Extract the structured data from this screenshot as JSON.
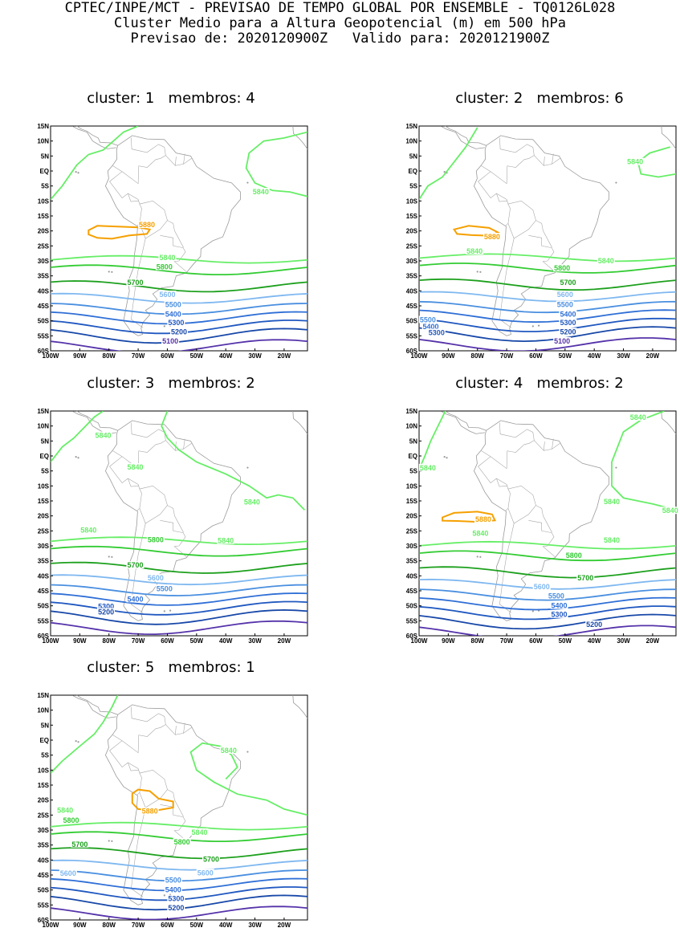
{
  "header": {
    "line1": "CPTEC/INPE/MCT - PREVISAO DE TEMPO GLOBAL POR ENSEMBLE - TQ0126L028",
    "line2": "Cluster Medio para a Altura Geopotencial (m) em 500 hPa",
    "line3": "Previsao de: 2020120900Z   Valido para: 2020121900Z"
  },
  "axes": {
    "lat_labels": [
      "15N",
      "10N",
      "5N",
      "EQ",
      "5S",
      "10S",
      "15S",
      "20S",
      "25S",
      "30S",
      "35S",
      "40S",
      "45S",
      "50S",
      "55S",
      "60S"
    ],
    "lon_labels": [
      "100W",
      "90W",
      "80W",
      "70W",
      "60W",
      "50W",
      "40W",
      "30W",
      "20W"
    ]
  },
  "contour_colors": {
    "5880": "#f5a000",
    "5840": "#66ee66",
    "5800": "#33cc33",
    "5700": "#1da01d",
    "5600": "#7fb8f0",
    "5500": "#4a8fe0",
    "5400": "#2f6fd6",
    "5300": "#2058c0",
    "5200": "#1848a8",
    "5100": "#5533aa"
  },
  "panels": [
    {
      "title": "cluster: 1   membros: 4",
      "labels": [
        {
          "text": "5880",
          "lon": -67,
          "lat": -18.5
        },
        {
          "text": "5840",
          "lon": -28,
          "lat": -7.5
        },
        {
          "text": "5840",
          "lon": -60,
          "lat": -29.5
        },
        {
          "text": "5800",
          "lon": -61,
          "lat": -32.5
        },
        {
          "text": "5700",
          "lon": -71,
          "lat": -37.8
        },
        {
          "text": "5600",
          "lon": -60,
          "lat": -41.8
        },
        {
          "text": "5500",
          "lon": -58,
          "lat": -45.2
        },
        {
          "text": "5400",
          "lon": -58,
          "lat": -48.3
        },
        {
          "text": "5300",
          "lon": -57,
          "lat": -51.2
        },
        {
          "text": "5200",
          "lon": -56,
          "lat": -54.2
        },
        {
          "text": "5100",
          "lon": -59,
          "lat": -57.3
        }
      ]
    },
    {
      "title": "cluster: 2   membros: 6",
      "labels": [
        {
          "text": "5840",
          "lon": -26,
          "lat": 2.5
        },
        {
          "text": "5880",
          "lon": -75,
          "lat": -22.5
        },
        {
          "text": "5840",
          "lon": -81,
          "lat": -27.3
        },
        {
          "text": "5840",
          "lon": -36,
          "lat": -30.5
        },
        {
          "text": "5800",
          "lon": -51,
          "lat": -33
        },
        {
          "text": "5700",
          "lon": -49,
          "lat": -37.8
        },
        {
          "text": "5600",
          "lon": -50,
          "lat": -41.8
        },
        {
          "text": "5500",
          "lon": -50,
          "lat": -45.2
        },
        {
          "text": "5400",
          "lon": -49,
          "lat": -48.3
        },
        {
          "text": "5300",
          "lon": -49,
          "lat": -51.2
        },
        {
          "text": "5200",
          "lon": -49,
          "lat": -54.2
        },
        {
          "text": "5100",
          "lon": -51,
          "lat": -57.3
        },
        {
          "text": "5500",
          "lon": -97,
          "lat": -50.2
        },
        {
          "text": "5400",
          "lon": -96,
          "lat": -52.5
        },
        {
          "text": "5300",
          "lon": -94,
          "lat": -54.5
        }
      ]
    },
    {
      "title": "cluster: 3   membros: 2",
      "labels": [
        {
          "text": "5840",
          "lon": -82,
          "lat": 6.3
        },
        {
          "text": "5840",
          "lon": -71,
          "lat": -4.3
        },
        {
          "text": "5840",
          "lon": -31,
          "lat": -16
        },
        {
          "text": "5840",
          "lon": -87,
          "lat": -25.3
        },
        {
          "text": "5800",
          "lon": -64,
          "lat": -28.5
        },
        {
          "text": "5840",
          "lon": -40,
          "lat": -28.8
        },
        {
          "text": "5700",
          "lon": -71,
          "lat": -37
        },
        {
          "text": "5600",
          "lon": -64,
          "lat": -41.3
        },
        {
          "text": "5500",
          "lon": -61,
          "lat": -44.8
        },
        {
          "text": "5400",
          "lon": -71,
          "lat": -48.3
        },
        {
          "text": "5300",
          "lon": -81,
          "lat": -50.8
        },
        {
          "text": "5200",
          "lon": -81,
          "lat": -52.7
        }
      ]
    },
    {
      "title": "cluster: 4   membros: 2",
      "labels": [
        {
          "text": "5840",
          "lon": -25,
          "lat": 12.3
        },
        {
          "text": "5840",
          "lon": -97,
          "lat": -4.5
        },
        {
          "text": "5840",
          "lon": -34,
          "lat": -15.8
        },
        {
          "text": "5840",
          "lon": -14,
          "lat": -18.8
        },
        {
          "text": "5880",
          "lon": -78,
          "lat": -21.7
        },
        {
          "text": "5840",
          "lon": -79,
          "lat": -26.4
        },
        {
          "text": "5840",
          "lon": -34,
          "lat": -28.7
        },
        {
          "text": "5800",
          "lon": -47,
          "lat": -33.8
        },
        {
          "text": "5700",
          "lon": -43,
          "lat": -41.3
        },
        {
          "text": "5600",
          "lon": -58,
          "lat": -44.2
        },
        {
          "text": "5500",
          "lon": -53,
          "lat": -47.3
        },
        {
          "text": "5400",
          "lon": -52,
          "lat": -50.5
        },
        {
          "text": "5300",
          "lon": -52,
          "lat": -53.5
        },
        {
          "text": "5200",
          "lon": -40,
          "lat": -56.8
        }
      ]
    },
    {
      "title": "cluster: 5   membros: 1",
      "labels": [
        {
          "text": "5840",
          "lon": -39,
          "lat": -4
        },
        {
          "text": "5880",
          "lon": -66,
          "lat": -24.3
        },
        {
          "text": "5840",
          "lon": -95,
          "lat": -24
        },
        {
          "text": "5800",
          "lon": -93,
          "lat": -27.3
        },
        {
          "text": "5840",
          "lon": -49,
          "lat": -31.3
        },
        {
          "text": "5800",
          "lon": -55,
          "lat": -34.5
        },
        {
          "text": "5700",
          "lon": -90,
          "lat": -35.3
        },
        {
          "text": "5700",
          "lon": -45,
          "lat": -40.3
        },
        {
          "text": "5600",
          "lon": -94,
          "lat": -45
        },
        {
          "text": "5600",
          "lon": -47,
          "lat": -44.8
        },
        {
          "text": "5500",
          "lon": -58,
          "lat": -47.3
        },
        {
          "text": "5400",
          "lon": -58,
          "lat": -50.5
        },
        {
          "text": "5300",
          "lon": -57,
          "lat": -53.5
        },
        {
          "text": "5200",
          "lon": -57,
          "lat": -56.5
        }
      ]
    }
  ]
}
